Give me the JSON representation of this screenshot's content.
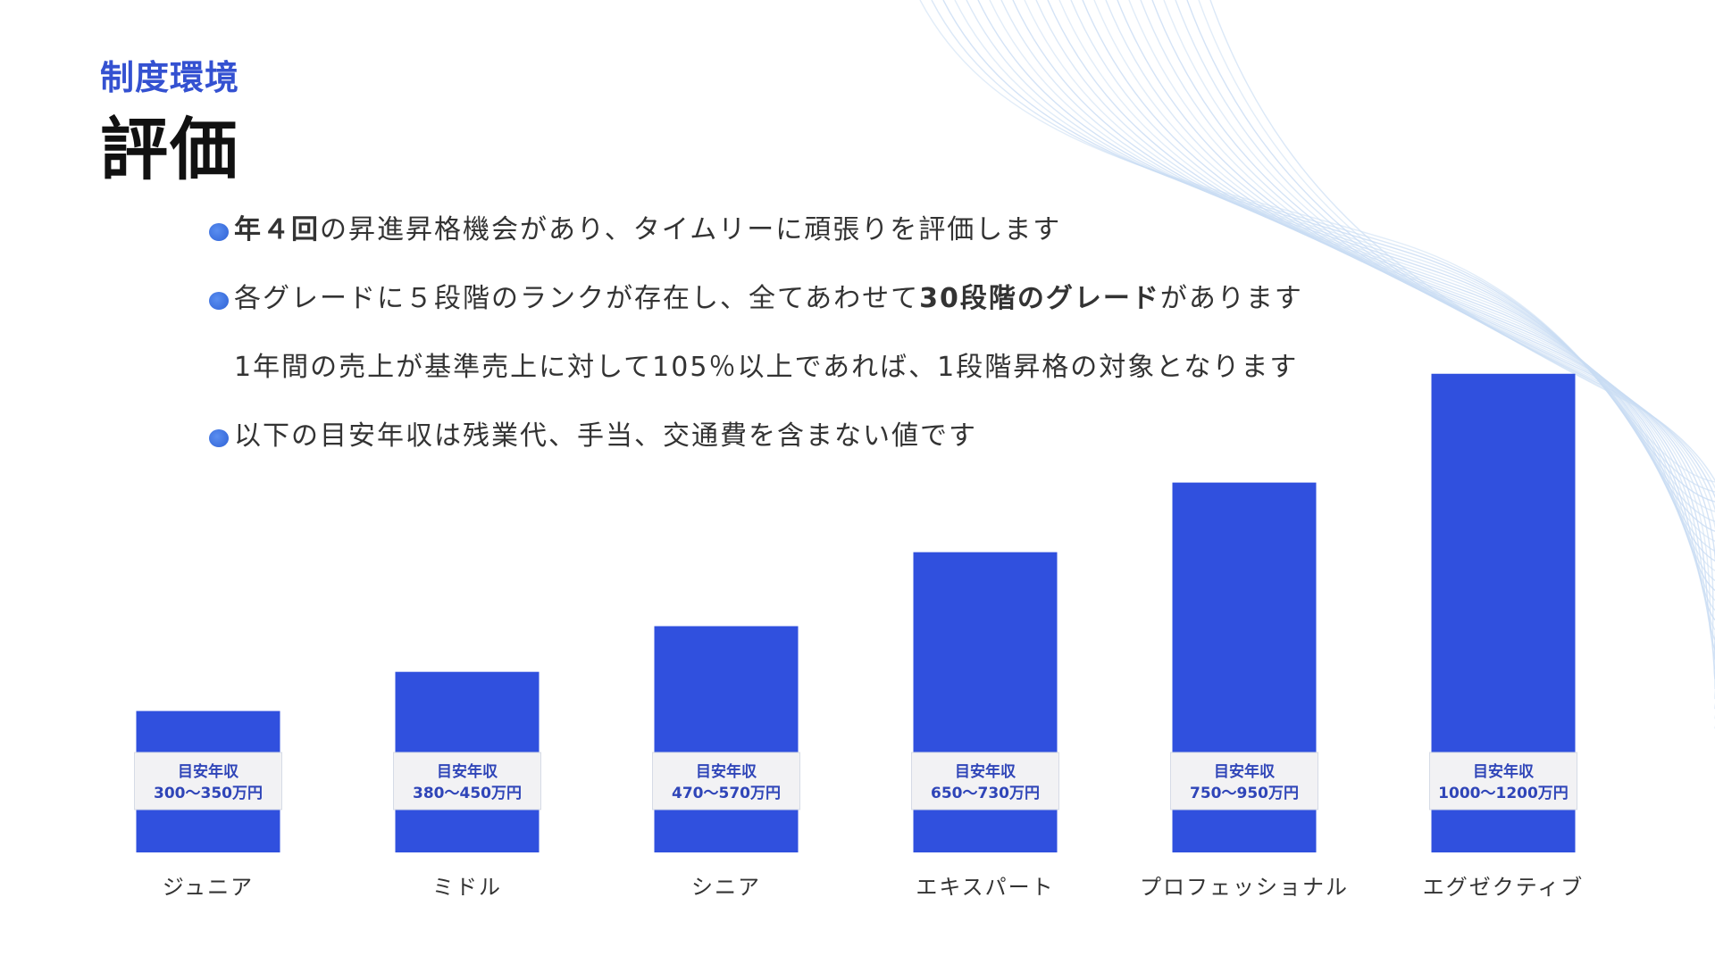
{
  "header": {
    "section": "制度環境",
    "title": "評価"
  },
  "bullets": [
    {
      "bold": "年４回",
      "text": "の昇進昇格機会があり、タイムリーに頑張りを評価します",
      "has_dot": true
    },
    {
      "pre": "各グレードに５段階のランクが存在し、全てあわせて",
      "bold": "30段階のグレード",
      "post": "があります",
      "has_dot": true
    },
    {
      "text": "1年間の売上が基準売上に対して105％以上であれば、1段階昇格の対象となります",
      "has_dot": false
    },
    {
      "text": "以下の目安年収は残業代、手当、交通費を含まない値です",
      "has_dot": true
    }
  ],
  "colors": {
    "bar": "#3050de",
    "label_bg": "#f2f2f4",
    "label_text": "#2f45b8",
    "accent": "#3451d1"
  },
  "chart_data": {
    "type": "bar",
    "categories": [
      "ジュニア",
      "ミドル",
      "シニア",
      "エキスパート",
      "プロフェッショナル",
      "エグゼクティブ"
    ],
    "values": [
      325,
      415,
      520,
      690,
      850,
      1100
    ],
    "ranges": [
      [
        300,
        350
      ],
      [
        380,
        450
      ],
      [
        470,
        570
      ],
      [
        650,
        730
      ],
      [
        750,
        950
      ],
      [
        1000,
        1200
      ]
    ],
    "data_labels": [
      {
        "line1": "目安年収",
        "line2": "300～350万円"
      },
      {
        "line1": "目安年収",
        "line2": "380～450万円"
      },
      {
        "line1": "目安年収",
        "line2": "470～570万円"
      },
      {
        "line1": "目安年収",
        "line2": "650～730万円"
      },
      {
        "line1": "目安年収",
        "line2": "750～950万円"
      },
      {
        "line1": "目安年収",
        "line2": "1000～1200万円"
      }
    ],
    "title": "",
    "xlabel": "",
    "ylabel": "",
    "ylim": [
      0,
      1200
    ],
    "grid": false,
    "axes_visible": false
  }
}
